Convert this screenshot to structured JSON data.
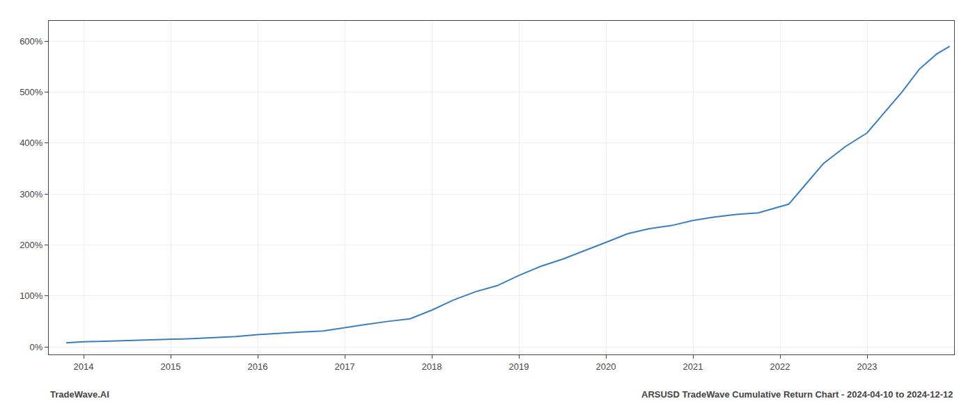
{
  "chart_data": {
    "type": "line",
    "title": "ARSUSD TradeWave Cumulative Return Chart - 2024-04-10 to 2024-12-12",
    "annotations": [
      "TradeWave.AI"
    ],
    "color": "#3a7ebf",
    "grid": true,
    "x": [
      2013.8,
      2014.0,
      2014.25,
      2014.5,
      2014.75,
      2015.0,
      2015.25,
      2015.5,
      2015.75,
      2016.0,
      2016.25,
      2016.5,
      2016.75,
      2017.0,
      2017.25,
      2017.5,
      2017.75,
      2018.0,
      2018.25,
      2018.5,
      2018.75,
      2019.0,
      2019.25,
      2019.5,
      2019.75,
      2020.0,
      2020.25,
      2020.5,
      2020.75,
      2021.0,
      2021.25,
      2021.5,
      2021.75,
      2022.0,
      2022.1,
      2022.3,
      2022.5,
      2022.75,
      2023.0,
      2023.2,
      2023.4,
      2023.6,
      2023.8,
      2023.95
    ],
    "values": [
      8,
      10,
      11,
      12,
      13,
      15,
      16,
      18,
      20,
      24,
      27,
      29,
      31,
      38,
      44,
      50,
      55,
      72,
      92,
      108,
      120,
      140,
      158,
      172,
      188,
      205,
      222,
      232,
      238,
      248,
      255,
      260,
      263,
      275,
      280,
      320,
      360,
      393,
      420,
      460,
      500,
      545,
      575,
      590
    ],
    "xlim": [
      2013.6,
      2024.0
    ],
    "xticks": [
      2014,
      2015,
      2016,
      2017,
      2018,
      2019,
      2020,
      2021,
      2022,
      2023
    ],
    "ylim": [
      -15,
      640
    ],
    "yticks": [
      {
        "value": 0,
        "label": "0%"
      },
      {
        "value": 100,
        "label": "100%"
      },
      {
        "value": 200,
        "label": "200%"
      },
      {
        "value": 300,
        "label": "300%"
      },
      {
        "value": 400,
        "label": "400%"
      },
      {
        "value": 500,
        "label": "500%"
      },
      {
        "value": 600,
        "label": "600%"
      }
    ]
  }
}
